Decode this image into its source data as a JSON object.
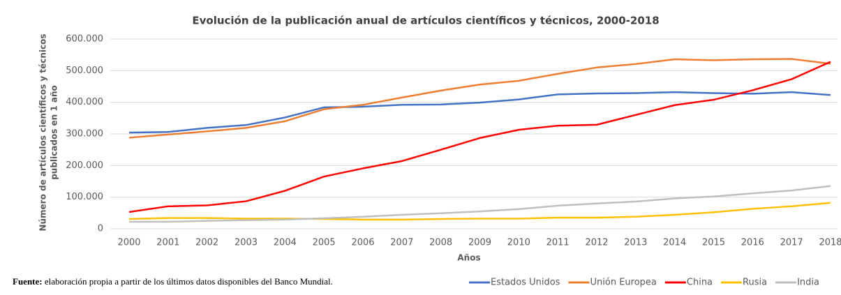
{
  "chart_data": {
    "type": "line",
    "title": "Evolución de la publicación anual de artículos científicos y técnicos, 2000-2018",
    "xlabel": "Años",
    "ylabel": [
      "Número de artículos científicos y técnicos",
      "publicados en 1 año"
    ],
    "categories": [
      "2000",
      "2001",
      "2002",
      "2003",
      "2004",
      "2005",
      "2006",
      "2007",
      "2008",
      "2009",
      "2010",
      "2011",
      "2012",
      "2013",
      "2014",
      "2015",
      "2016",
      "2017",
      "2018"
    ],
    "ylim": [
      0,
      600000
    ],
    "yticks": [
      0,
      {
        "value": 100000,
        "label": "100.000"
      },
      {
        "value": 200000,
        "label": "200.000"
      },
      {
        "value": 300000,
        "label": "300.000"
      },
      {
        "value": 400000,
        "label": "400.000"
      },
      {
        "value": 500000,
        "label": "500.000"
      },
      {
        "value": 600000,
        "label": "600.000"
      }
    ],
    "grid": true,
    "legend": "bottom-right",
    "series": [
      {
        "name": "Estados Unidos",
        "color": "#4472c4",
        "values": [
          304000,
          306000,
          319000,
          328000,
          352000,
          384000,
          386000,
          392000,
          393000,
          399000,
          409000,
          425000,
          428000,
          429000,
          432000,
          429000,
          427000,
          432000,
          423000
        ]
      },
      {
        "name": "Unión Europea",
        "color": "#ed7d31",
        "values": [
          288000,
          298000,
          308000,
          319000,
          340000,
          378000,
          392000,
          415000,
          437000,
          456000,
          468000,
          490000,
          510000,
          521000,
          536000,
          533000,
          536000,
          537000,
          522000
        ]
      },
      {
        "name": "China",
        "color": "#ff0000",
        "values": [
          53000,
          71000,
          74000,
          87000,
          120000,
          165000,
          191000,
          214000,
          250000,
          287000,
          313000,
          326000,
          329000,
          360000,
          391000,
          408000,
          438000,
          473000,
          528000
        ]
      },
      {
        "name": "Rusia",
        "color": "#ffc000",
        "values": [
          31000,
          34000,
          34000,
          32000,
          32000,
          31000,
          29000,
          29000,
          31000,
          32000,
          32000,
          35000,
          35000,
          38000,
          44000,
          52000,
          63000,
          71000,
          82000
        ]
      },
      {
        "name": "India",
        "color": "#bfbfbf",
        "values": [
          22000,
          22000,
          25000,
          27000,
          29000,
          33000,
          38000,
          44000,
          49000,
          55000,
          62000,
          73000,
          80000,
          86000,
          96000,
          102000,
          112000,
          121000,
          135000
        ]
      }
    ],
    "source": {
      "label": "Fuente:",
      "text": " elaboración propia a partir de los últimos datos disponibles del Banco Mundial."
    }
  }
}
